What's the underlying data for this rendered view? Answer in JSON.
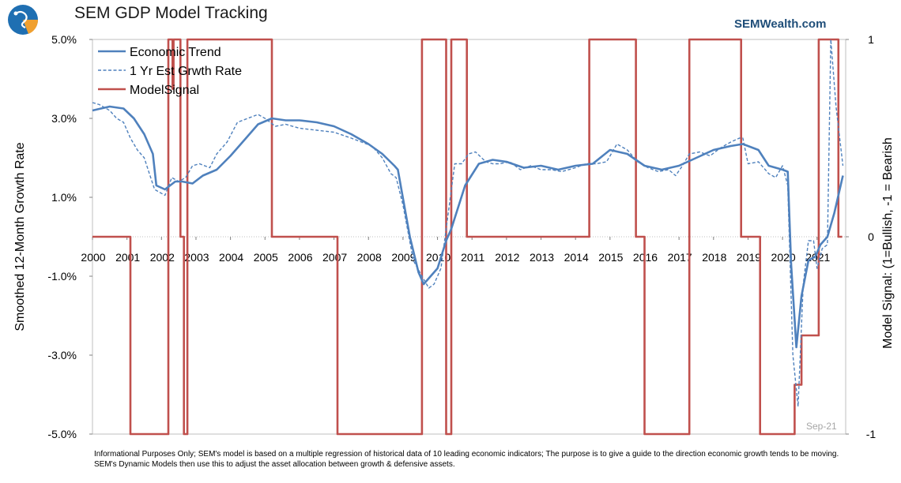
{
  "header": {
    "title": "SEM GDP Model Tracking",
    "brand": "SEMWealth.com",
    "logo_icon": "sem-logo-icon"
  },
  "footnote": "Informational Purposes Only; SEM's model is based on a multiple regression of historical data of 10 leading economic indicators; The purpose is to give a guide to the direction economic growth tends to be moving. SEM's Dynamic Models then use this to adjust the asset allocation between growth & defensive assets.",
  "chart_data": {
    "type": "line",
    "ylabel": "Smoothed 12-Month Growth Rate",
    "y2label": "Model Signal: (1=Bullish, -1 = Bearish",
    "ylim": [
      -5.0,
      5.0
    ],
    "y2lim": [
      -1,
      1
    ],
    "xlim": [
      2000,
      2021.83
    ],
    "y_ticks": [
      "5.0%",
      "3.0%",
      "1.0%",
      "-1.0%",
      "-3.0%",
      "-5.0%"
    ],
    "y_tick_values": [
      5,
      3,
      1,
      -1,
      -3,
      -5
    ],
    "y2_ticks": [
      "1",
      "0",
      "-1"
    ],
    "y2_tick_values": [
      1,
      0,
      -1
    ],
    "x_ticks": [
      "2000",
      "2001",
      "2002",
      "2003",
      "2004",
      "2005",
      "2006",
      "2007",
      "2008",
      "2009",
      "2010",
      "2011",
      "2012",
      "2013",
      "2014",
      "2015",
      "2016",
      "2017",
      "2018",
      "2019",
      "2020",
      "2021"
    ],
    "annotation": "Sep-21",
    "legend_position": "top-left",
    "colors": {
      "trend": "#4f81bd",
      "estimate": "#4f81bd",
      "signal": "#c0504d"
    },
    "series": [
      {
        "name": "Economic Trend",
        "style": "solid",
        "x": [
          2000,
          2000.5,
          2000.9,
          2001.2,
          2001.5,
          2001.75,
          2001.85,
          2002.1,
          2002.4,
          2002.6,
          2002.9,
          2003.2,
          2003.6,
          2004.0,
          2004.4,
          2004.8,
          2005.2,
          2005.6,
          2006.0,
          2006.5,
          2007.0,
          2007.5,
          2008.0,
          2008.4,
          2008.75,
          2008.85,
          2009.2,
          2009.45,
          2009.6,
          2010.0,
          2010.25,
          2010.4,
          2010.8,
          2011.2,
          2011.6,
          2012.0,
          2012.5,
          2013.0,
          2013.5,
          2014.0,
          2014.5,
          2015.0,
          2015.5,
          2016.0,
          2016.5,
          2017.0,
          2017.5,
          2018.0,
          2018.5,
          2018.85,
          2019.3,
          2019.6,
          2020.0,
          2020.15,
          2020.25,
          2020.4,
          2020.55,
          2020.75,
          2020.95,
          2021.1,
          2021.3,
          2021.5,
          2021.75
        ],
        "y": [
          3.2,
          3.3,
          3.25,
          3.0,
          2.6,
          2.1,
          1.3,
          1.2,
          1.4,
          1.4,
          1.35,
          1.55,
          1.7,
          2.05,
          2.45,
          2.85,
          3.0,
          2.95,
          2.95,
          2.9,
          2.8,
          2.6,
          2.35,
          2.1,
          1.8,
          1.7,
          0.0,
          -0.9,
          -1.2,
          -0.8,
          -0.1,
          0.2,
          1.3,
          1.85,
          1.95,
          1.9,
          1.75,
          1.8,
          1.7,
          1.8,
          1.85,
          2.2,
          2.1,
          1.8,
          1.7,
          1.8,
          2.0,
          2.2,
          2.3,
          2.35,
          2.2,
          1.8,
          1.7,
          1.65,
          -0.7,
          -2.8,
          -1.5,
          -0.6,
          -0.5,
          -0.2,
          0.0,
          0.6,
          1.55
        ]
      },
      {
        "name": "1 Yr Est Grwth Rate",
        "style": "dashed",
        "x": [
          2000,
          2000.2,
          2000.5,
          2000.7,
          2000.9,
          2001.1,
          2001.3,
          2001.5,
          2001.65,
          2001.8,
          2001.9,
          2002.1,
          2002.3,
          2002.5,
          2002.7,
          2002.9,
          2003.1,
          2003.4,
          2003.6,
          2003.9,
          2004.2,
          2004.5,
          2004.8,
          2005.0,
          2005.3,
          2005.6,
          2006.0,
          2006.5,
          2007.0,
          2007.5,
          2007.8,
          2008.1,
          2008.4,
          2008.65,
          2008.8,
          2009.0,
          2009.3,
          2009.55,
          2009.75,
          2009.9,
          2010.1,
          2010.25,
          2010.5,
          2010.7,
          2010.9,
          2011.1,
          2011.4,
          2011.6,
          2011.8,
          2012.1,
          2012.4,
          2012.7,
          2013.0,
          2013.3,
          2013.6,
          2014.0,
          2014.3,
          2014.6,
          2014.9,
          2015.2,
          2015.5,
          2015.8,
          2016.1,
          2016.4,
          2016.7,
          2016.9,
          2017.1,
          2017.3,
          2017.6,
          2017.9,
          2018.2,
          2018.5,
          2018.75,
          2018.85,
          2019.0,
          2019.3,
          2019.6,
          2019.8,
          2020.0,
          2020.15,
          2020.3,
          2020.45,
          2020.6,
          2020.75,
          2020.9,
          2021.0,
          2021.15,
          2021.3,
          2021.4,
          2021.55,
          2021.75
        ],
        "y": [
          3.4,
          3.35,
          3.2,
          3.0,
          2.9,
          2.5,
          2.2,
          2.0,
          1.6,
          1.2,
          1.15,
          1.05,
          1.5,
          1.4,
          1.5,
          1.8,
          1.85,
          1.75,
          2.1,
          2.4,
          2.9,
          3.0,
          3.1,
          3.0,
          2.8,
          2.85,
          2.75,
          2.7,
          2.65,
          2.5,
          2.4,
          2.3,
          2.0,
          1.6,
          1.5,
          0.8,
          -0.6,
          -1.0,
          -1.3,
          -1.2,
          -0.8,
          0.2,
          1.85,
          1.85,
          2.1,
          2.15,
          1.9,
          1.85,
          1.85,
          1.9,
          1.7,
          1.8,
          1.7,
          1.7,
          1.65,
          1.75,
          1.85,
          1.85,
          1.9,
          2.35,
          2.2,
          1.9,
          1.75,
          1.65,
          1.7,
          1.55,
          1.8,
          2.1,
          2.15,
          2.05,
          2.25,
          2.4,
          2.5,
          2.5,
          1.85,
          1.9,
          1.6,
          1.5,
          1.8,
          1.3,
          -3.0,
          -4.3,
          -1.2,
          -0.1,
          -0.1,
          -0.8,
          -0.3,
          -0.2,
          5.0,
          3.3,
          1.8
        ]
      },
      {
        "name": "ModelSignal",
        "style": "solid",
        "axis": "right",
        "x": [
          2000,
          2001.1,
          2001.1,
          2002.2,
          2002.2,
          2002.32,
          2002.32,
          2002.35,
          2002.35,
          2002.55,
          2002.55,
          2002.65,
          2002.65,
          2002.75,
          2002.75,
          2002.95,
          2002.95,
          2005.2,
          2005.2,
          2007.1,
          2007.1,
          2009.55,
          2009.55,
          2010.25,
          2010.25,
          2010.4,
          2010.4,
          2010.85,
          2010.85,
          2011.75,
          2011.75,
          2014.4,
          2014.4,
          2015.75,
          2015.75,
          2016.0,
          2016.0,
          2017.3,
          2017.3,
          2018.8,
          2018.8,
          2019.35,
          2019.35,
          2019.95,
          2019.95,
          2020.35,
          2020.35,
          2020.55,
          2020.55,
          2020.65,
          2020.65,
          2021.05,
          2021.05,
          2021.55,
          2021.55,
          2021.62,
          2021.62,
          2021.73
        ],
        "y": [
          0,
          0,
          -1,
          -1,
          1,
          1,
          0.75,
          0.75,
          1,
          1,
          0,
          0,
          -1,
          -1,
          1,
          1,
          1,
          1,
          0,
          0,
          -1,
          -1,
          1,
          1,
          -1,
          -1,
          1,
          1,
          0,
          0,
          0,
          0,
          1,
          1,
          0,
          0,
          -1,
          -1,
          1,
          1,
          0,
          0,
          -1,
          -1,
          -1,
          -1,
          -0.75,
          -0.75,
          -0.5,
          -0.5,
          -0.5,
          -0.5,
          1,
          1,
          1,
          1,
          0,
          0
        ]
      }
    ]
  }
}
